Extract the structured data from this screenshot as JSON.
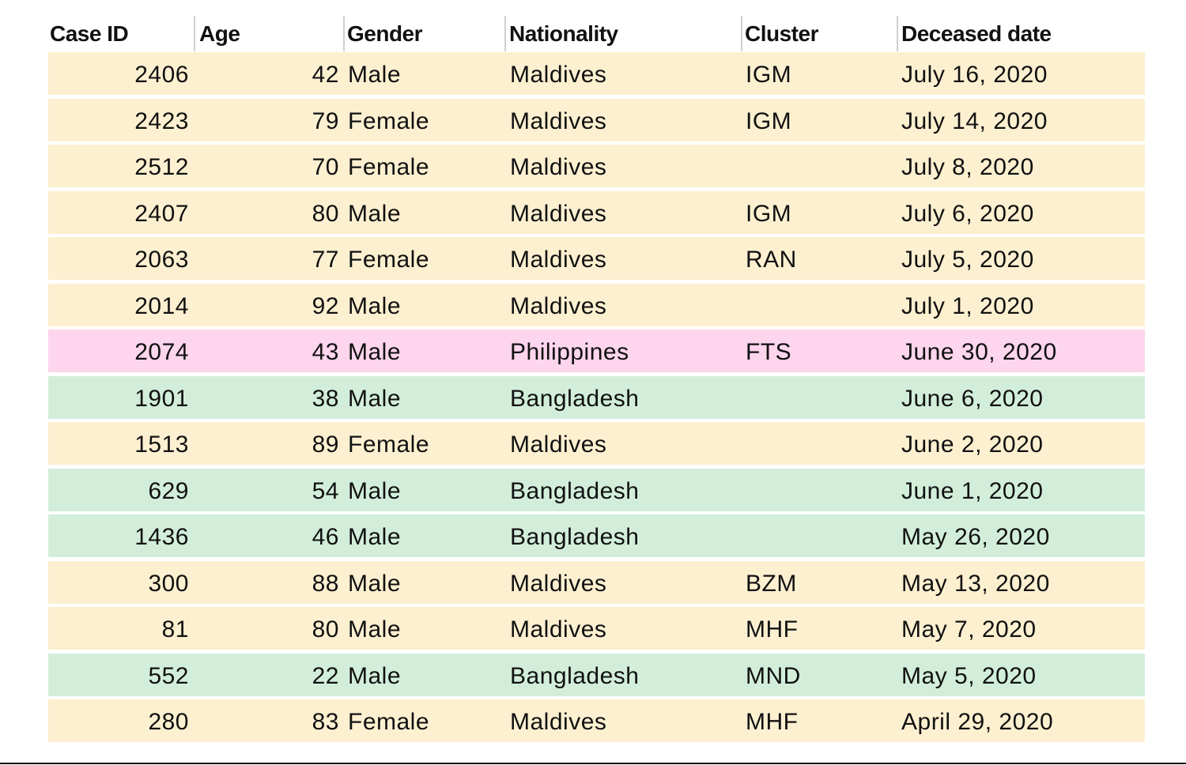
{
  "headers": [
    "Case ID",
    "Age",
    "Gender",
    "Nationality",
    "Cluster",
    "Deceased date"
  ],
  "colors": {
    "Maldives": "#fdf0d0",
    "Philippines": "#fdd5ec",
    "Bangladesh": "#d2eedb"
  },
  "rows": [
    {
      "case_id": "2406",
      "age": "42",
      "gender": "Male",
      "nationality": "Maldives",
      "cluster": "IGM",
      "date": "July 16, 2020"
    },
    {
      "case_id": "2423",
      "age": "79",
      "gender": "Female",
      "nationality": "Maldives",
      "cluster": "IGM",
      "date": "July 14, 2020"
    },
    {
      "case_id": "2512",
      "age": "70",
      "gender": "Female",
      "nationality": "Maldives",
      "cluster": "",
      "date": "July 8, 2020"
    },
    {
      "case_id": "2407",
      "age": "80",
      "gender": "Male",
      "nationality": "Maldives",
      "cluster": "IGM",
      "date": "July 6, 2020"
    },
    {
      "case_id": "2063",
      "age": "77",
      "gender": "Female",
      "nationality": "Maldives",
      "cluster": "RAN",
      "date": "July 5, 2020"
    },
    {
      "case_id": "2014",
      "age": "92",
      "gender": "Male",
      "nationality": "Maldives",
      "cluster": "",
      "date": "July 1, 2020"
    },
    {
      "case_id": "2074",
      "age": "43",
      "gender": "Male",
      "nationality": "Philippines",
      "cluster": "FTS",
      "date": "June 30, 2020"
    },
    {
      "case_id": "1901",
      "age": "38",
      "gender": "Male",
      "nationality": "Bangladesh",
      "cluster": "",
      "date": "June 6, 2020"
    },
    {
      "case_id": "1513",
      "age": "89",
      "gender": "Female",
      "nationality": "Maldives",
      "cluster": "",
      "date": "June 2, 2020"
    },
    {
      "case_id": "629",
      "age": "54",
      "gender": "Male",
      "nationality": "Bangladesh",
      "cluster": "",
      "date": "June 1, 2020"
    },
    {
      "case_id": "1436",
      "age": "46",
      "gender": "Male",
      "nationality": "Bangladesh",
      "cluster": "",
      "date": "May 26, 2020"
    },
    {
      "case_id": "300",
      "age": "88",
      "gender": "Male",
      "nationality": "Maldives",
      "cluster": "BZM",
      "date": "May 13, 2020"
    },
    {
      "case_id": "81",
      "age": "80",
      "gender": "Male",
      "nationality": "Maldives",
      "cluster": "MHF",
      "date": "May 7, 2020"
    },
    {
      "case_id": "552",
      "age": "22",
      "gender": "Male",
      "nationality": "Bangladesh",
      "cluster": "MND",
      "date": "May 5, 2020"
    },
    {
      "case_id": "280",
      "age": "83",
      "gender": "Female",
      "nationality": "Maldives",
      "cluster": "MHF",
      "date": "April 29, 2020"
    }
  ]
}
